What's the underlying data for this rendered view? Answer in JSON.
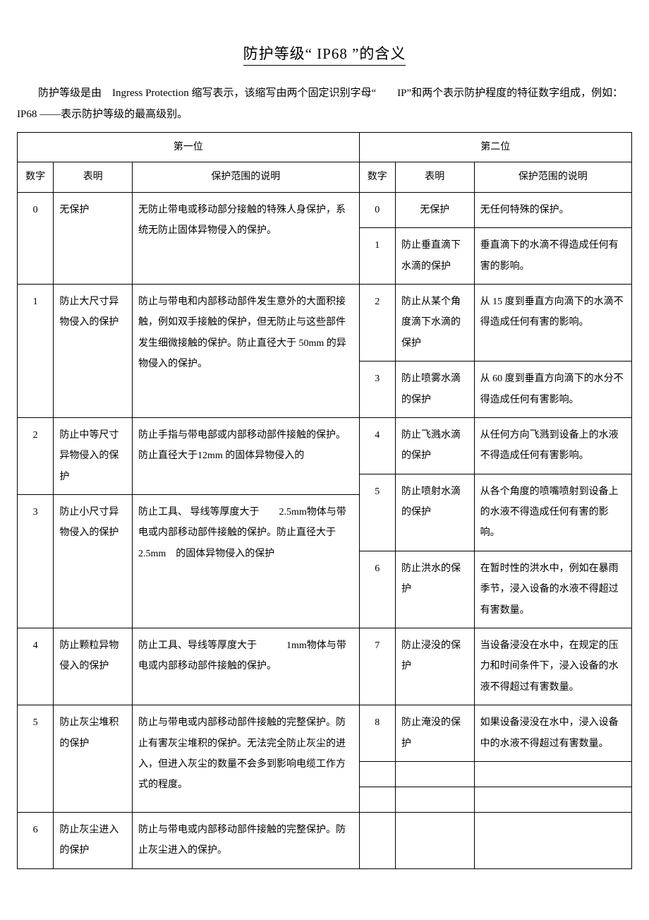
{
  "title": {
    "pre": "防护等级“",
    "code": " IP68 ",
    "post": "”的含义"
  },
  "intro": "防护等级是由　Ingress Protection 缩写表示，该缩写由两个固定识别字母“　　IP”和两个表示防护程度的特征数字组成，例如：　　IP68 ——表示防护等级的最高级别。",
  "headers": {
    "group1": "第一位",
    "group2": "第二位",
    "num": "数字",
    "label": "表明",
    "desc": "保护范围的说明"
  },
  "left": {
    "r0": {
      "num": "0",
      "label": "无保护",
      "desc": "无防止带电或移动部分接触的特殊人身保护，系统无防止固体异物侵入的保护。"
    },
    "r1": {
      "num": "1",
      "label": "防止大尺寸异物侵入的保护",
      "desc": "防止与带电和内部移动部件发生意外的大面积接触，例如双手接触的保护，但无防止与这些部件发生细微接触的保护。防止直径大于 50mm 的异物侵入的保护。"
    },
    "r2": {
      "num": "2",
      "label": "防止中等尺寸异物侵入的保护",
      "desc": "防止手指与带电部或内部移动部件接触的保护。防止直径大于12mm 的固体异物侵入的"
    },
    "r3": {
      "num": "3",
      "label": "防止小尺寸异物侵入的保护",
      "desc": "防止工具、 导线等厚度大于　　2.5mm物体与带电或内部移动部件接触的保护。防止直径大于　　2.5mm　的固体异物侵入的保护"
    },
    "r4": {
      "num": "4",
      "label": "防止颗粒异物侵入的保护",
      "desc": "防止工具、导线等厚度大于　　　1mm物体与带电或内部移动部件接触的保护。"
    },
    "r5": {
      "num": "5",
      "label": "防止灰尘堆积的保护",
      "desc": "防止与带电或内部移动部件接触的完整保护。防止有害灰尘堆积的保护。无法完全防止灰尘的进入，但进入灰尘的数量不会多到影响电缆工作方式的程度。"
    },
    "r6": {
      "num": "6",
      "label": "防止灰尘进入的保护",
      "desc": "防止与带电或内部移动部件接触的完整保护。防止灰尘进入的保护。"
    }
  },
  "right": {
    "r0": {
      "num": "0",
      "label": "无保护",
      "desc": "无任何特殊的保护。"
    },
    "r1": {
      "num": "1",
      "label": "防止垂直滴下水滴的保护",
      "desc": "垂直滴下的水滴不得造成任何有害的影响。"
    },
    "r2": {
      "num": "2",
      "label": "防止从某个角度滴下水滴的保护",
      "desc": "从 15 度到垂直方向滴下的水滴不得造成任何有害的影响。"
    },
    "r3": {
      "num": "3",
      "label": "防止喷雾水滴的保护",
      "desc": "从 60 度到垂直方向滴下的水分不得造成任何有害影响。"
    },
    "r4": {
      "num": "4",
      "label": "防止飞溅水滴的保护",
      "desc": "从任何方向飞溅到设备上的水液不得造成任何有害影响。"
    },
    "r5": {
      "num": "5",
      "label": "防止喷射水滴的保护",
      "desc": "从各个角度的喷嘴喷射到设备上的水液不得造成任何有害的影响。"
    },
    "r6": {
      "num": "6",
      "label": "防止洪水的保护",
      "desc": "在暂时性的洪水中，例如在暴雨季节，浸入设备的水液不得超过有害数量。"
    },
    "r7": {
      "num": "7",
      "label": "防止浸没的保护",
      "desc": "当设备浸没在水中，在规定的压力和时间条件下，浸入设备的水液不得超过有害数量。"
    },
    "r8": {
      "num": "8",
      "label": "防止淹没的保护",
      "desc": "如果设备浸没在水中，浸入设备中的水液不得超过有害数量。"
    }
  }
}
